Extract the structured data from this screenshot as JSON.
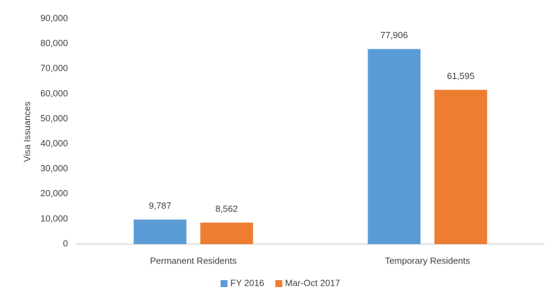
{
  "chart_data": {
    "type": "bar",
    "y_label": "Visa Issuances",
    "categories": [
      "Permanent Residents",
      "Temporary Residents"
    ],
    "series": [
      {
        "name": "FY 2016",
        "color": "#5b9bd5",
        "values": [
          9787,
          77906
        ],
        "value_labels": [
          "9,787",
          "77,906"
        ]
      },
      {
        "name": "Mar-Oct 2017",
        "color": "#ed7d31",
        "values": [
          8562,
          61595
        ],
        "value_labels": [
          "8,562",
          "61,595"
        ]
      }
    ],
    "ylim": [
      0,
      90000
    ],
    "yticks": [
      0,
      {
        "value": 10000,
        "label": "10,000"
      },
      {
        "value": 20000,
        "label": "20,000"
      },
      {
        "value": 30000,
        "label": "30,000"
      },
      {
        "value": 40000,
        "label": "40,000"
      },
      {
        "value": 50000,
        "label": "50,000"
      },
      {
        "value": 60000,
        "label": "60,000"
      },
      {
        "value": 70000,
        "label": "70,000"
      },
      {
        "value": 80000,
        "label": "80,000"
      },
      {
        "value": 90000,
        "label": "90,000"
      }
    ],
    "grid": false,
    "legend": "bottom"
  }
}
